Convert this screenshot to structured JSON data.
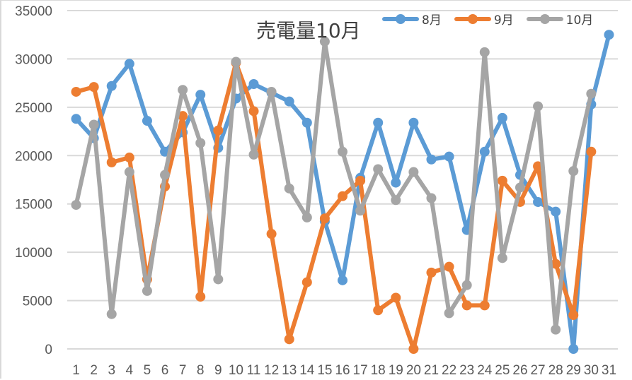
{
  "chart_data": {
    "type": "line",
    "title": "売電量10月",
    "xlabel": "",
    "ylabel": "",
    "ylim": [
      0,
      35000
    ],
    "yticks": [
      0,
      5000,
      10000,
      15000,
      20000,
      25000,
      30000,
      35000
    ],
    "grid": true,
    "legend_position": "top-right",
    "categories": [
      "1",
      "2",
      "3",
      "4",
      "5",
      "6",
      "7",
      "8",
      "9",
      "10",
      "11",
      "12",
      "13",
      "14",
      "15",
      "16",
      "17",
      "18",
      "19",
      "20",
      "21",
      "22",
      "23",
      "24",
      "25",
      "26",
      "27",
      "28",
      "29",
      "30",
      "31"
    ],
    "series": [
      {
        "name": "8月",
        "color": "#5b9bd5",
        "values": [
          23800,
          21800,
          27200,
          29500,
          23600,
          20400,
          22400,
          26300,
          20800,
          25900,
          27400,
          26500,
          25600,
          23400,
          13200,
          7100,
          17700,
          23400,
          17200,
          23400,
          19600,
          19900,
          12300,
          20400,
          23900,
          18000,
          15200,
          14200,
          0,
          25300,
          32500
        ]
      },
      {
        "name": "9月",
        "color": "#ed7d31",
        "values": [
          26600,
          27100,
          19300,
          19800,
          7200,
          16800,
          24100,
          5400,
          22600,
          29600,
          24600,
          11900,
          1000,
          6900,
          13500,
          15800,
          17400,
          4000,
          5300,
          0,
          7900,
          8500,
          4500,
          4500,
          17400,
          15200,
          18900,
          8800,
          3500,
          20400
        ]
      },
      {
        "name": "10月",
        "color": "#a5a5a5",
        "values": [
          14900,
          23200,
          3600,
          18300,
          6000,
          18000,
          26800,
          21300,
          7200,
          29700,
          20100,
          26600,
          16600,
          13600,
          31800,
          20400,
          14300,
          18600,
          15400,
          18300,
          15600,
          3700,
          6600,
          30700,
          9400,
          16700,
          25100,
          2000,
          18400,
          26400
        ]
      }
    ]
  },
  "legend": {
    "items": [
      {
        "label": "8月",
        "color": "#5b9bd5"
      },
      {
        "label": "9月",
        "color": "#ed7d31"
      },
      {
        "label": "10月",
        "color": "#a5a5a5"
      }
    ]
  }
}
